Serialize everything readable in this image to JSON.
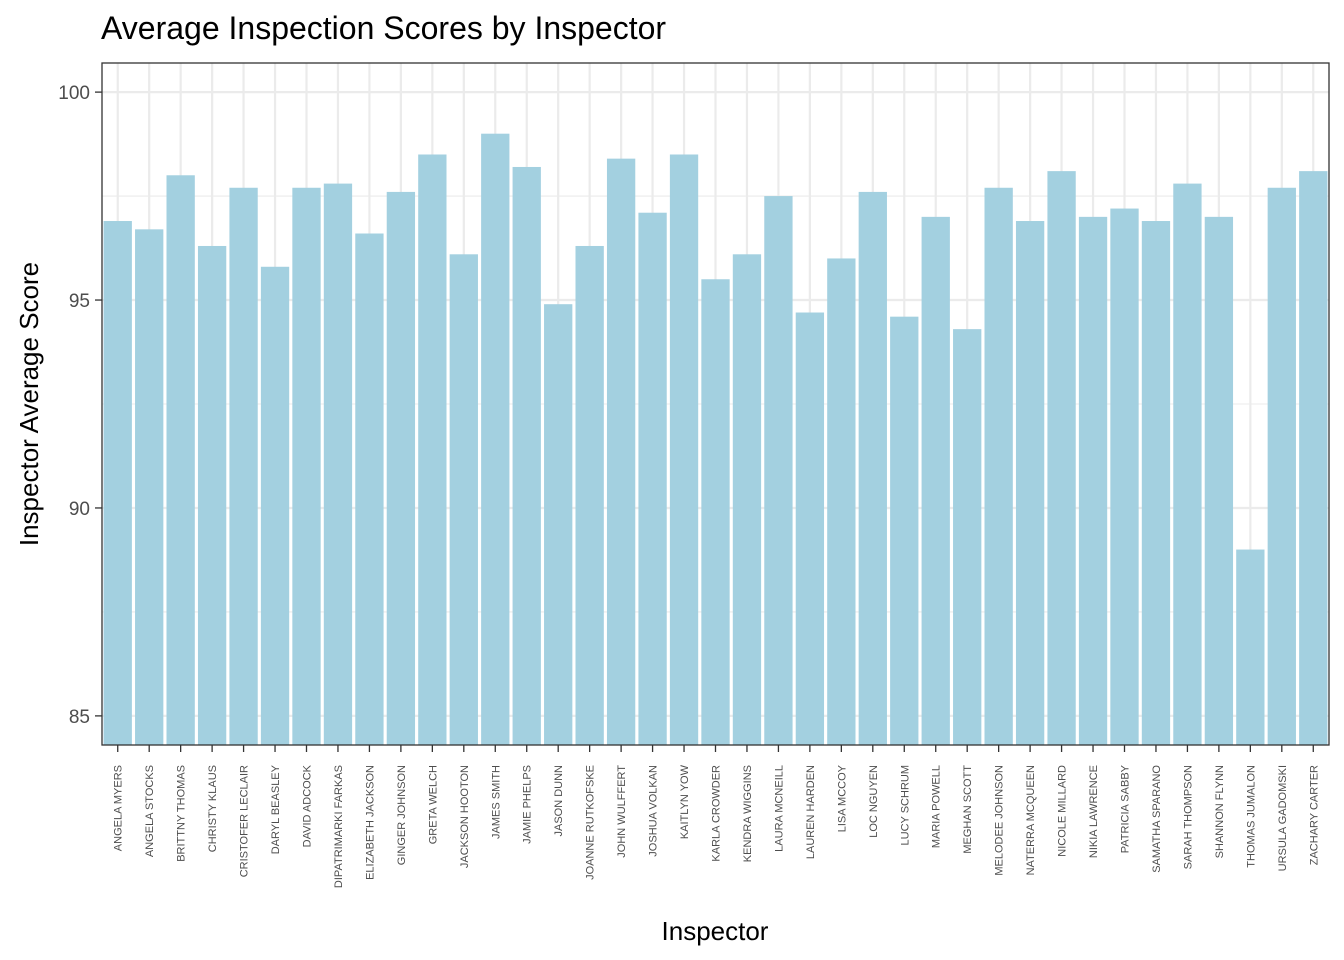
{
  "chart_data": {
    "type": "bar",
    "title": "Average Inspection Scores by Inspector",
    "xlabel": "Inspector",
    "ylabel": "Inspector Average Score",
    "ylim": [
      84.3,
      100.7
    ],
    "yticks": [
      85,
      90,
      95,
      100
    ],
    "ytick_labels": [
      "85",
      "90",
      "95",
      "100"
    ],
    "grid": true,
    "bar_color": "#a3d0e0",
    "categories": [
      "ANGELA MYERS",
      "ANGELA STOCKS",
      "BRITTNY THOMAS",
      "CHRISTY KLAUS",
      "CRISTOFER LECLAIR",
      "DARYL BEASLEY",
      "DAVID ADCOCK",
      "DIPATRIMARKI FARKAS",
      "ELIZABETH JACKSON",
      "GINGER JOHNSON",
      "GRETA WELCH",
      "JACKSON HOOTON",
      "JAMES SMITH",
      "JAMIE PHELPS",
      "JASON DUNN",
      "JOANNE RUTKOFSKE",
      "JOHN WULFFERT",
      "JOSHUA VOLKAN",
      "KAITLYN YOW",
      "KARLA CROWDER",
      "KENDRA WIGGINS",
      "LAURA MCNEILL",
      "LAUREN HARDEN",
      "LISA MCCOY",
      "LOC NGUYEN",
      "LUCY SCHRUM",
      "MARIA POWELL",
      "MEGHAN SCOTT",
      "MELODEE JOHNSON",
      "NATERRA MCQUEEN",
      "NICOLE MILLARD",
      "NIKIA LAWRENCE",
      "PATRICIA SABBY",
      "SAMATHA SPARANO",
      "SARAH THOMPSON",
      "SHANNON FLYNN",
      "THOMAS JUMALON",
      "URSULA GADOMSKI",
      "ZACHARY CARTER"
    ],
    "values": [
      96.9,
      96.7,
      98.0,
      96.3,
      97.7,
      95.8,
      97.7,
      97.8,
      96.6,
      97.6,
      98.5,
      96.1,
      99.0,
      98.2,
      94.9,
      96.3,
      98.4,
      97.1,
      98.5,
      95.5,
      96.1,
      97.5,
      94.7,
      96.0,
      97.6,
      94.6,
      97.0,
      94.3,
      97.7,
      96.9,
      98.1,
      97.0,
      97.2,
      96.9,
      97.8,
      97.0,
      89.0,
      97.7,
      98.1
    ]
  }
}
